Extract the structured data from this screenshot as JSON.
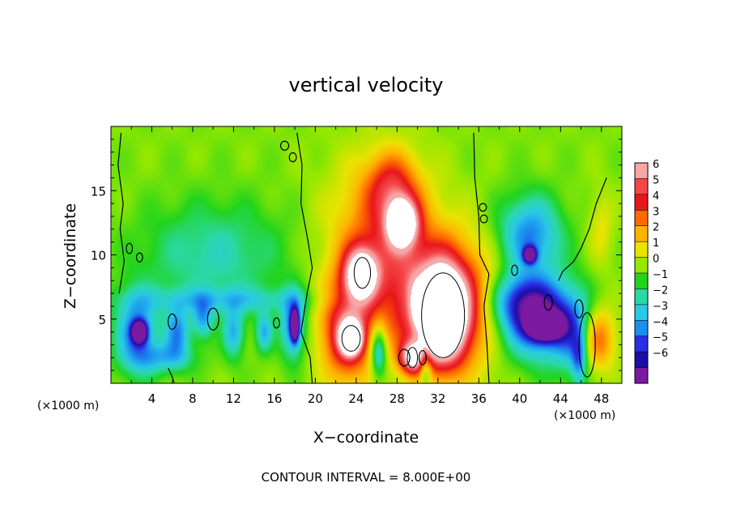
{
  "chart_data": {
    "type": "heatmap",
    "title": "vertical velocity",
    "xlabel": "X−coordinate",
    "ylabel": "Z−coordinate",
    "x_unit_left": "(×1000 m)",
    "x_unit_right": "(×1000 m)",
    "footer": "CONTOUR INTERVAL = 8.000E+00",
    "xlim": [
      0,
      50
    ],
    "ylim": [
      0,
      20
    ],
    "x_ticks": [
      4,
      8,
      12,
      16,
      20,
      24,
      28,
      32,
      36,
      40,
      44,
      48
    ],
    "y_ticks": [
      5,
      10,
      15
    ],
    "colorbar": {
      "levels": [
        "6",
        "5",
        "4",
        "3",
        "2",
        "1",
        "0",
        "−1",
        "−2",
        "−3",
        "−4",
        "−5",
        "−6"
      ],
      "colors": [
        "#f7a6a6",
        "#f4474a",
        "#e8161a",
        "#ff6a00",
        "#ffb300",
        "#e9e300",
        "#95e800",
        "#22d41e",
        "#2ad8a7",
        "#29c9e6",
        "#1b8ff0",
        "#2a2fe6",
        "#1a0fa8",
        "#7a1aa0"
      ]
    },
    "blobs": [
      {
        "x": 26.5,
        "z": 11,
        "rx": 5,
        "rz": 6,
        "v": 3.5
      },
      {
        "x": 27.5,
        "z": 15.5,
        "rx": 2.5,
        "rz": 2.5,
        "v": 3
      },
      {
        "x": 28.5,
        "z": 12.5,
        "rx": 1.5,
        "rz": 1.8,
        "v": 8
      },
      {
        "x": 32.5,
        "z": 6,
        "rx": 5,
        "rz": 5,
        "v": 6
      },
      {
        "x": 32.5,
        "z": 5.3,
        "rx": 2.1,
        "rz": 3.3,
        "v": 10
      },
      {
        "x": 23,
        "z": 4,
        "rx": 2.5,
        "rz": 4,
        "v": 5
      },
      {
        "x": 23.5,
        "z": 3.5,
        "rx": 1,
        "rz": 1.2,
        "v": 9
      },
      {
        "x": 24.5,
        "z": 8.5,
        "rx": 1.6,
        "rz": 2,
        "v": 7
      },
      {
        "x": 29.5,
        "z": 2,
        "rx": 1.2,
        "rz": 1.2,
        "v": 6
      },
      {
        "x": 47.5,
        "z": 3.5,
        "rx": 1.8,
        "rz": 2.5,
        "v": 4
      },
      {
        "x": 26.2,
        "z": 2.5,
        "rx": 0.8,
        "rz": 2,
        "v": -4
      },
      {
        "x": 29.8,
        "z": 6,
        "rx": 0.6,
        "rz": 1.8,
        "v": 1
      },
      {
        "x": 30.8,
        "z": 1.2,
        "rx": 0.6,
        "rz": 1.4,
        "v": -3
      },
      {
        "x": 42,
        "z": 5,
        "rx": 4,
        "rz": 3,
        "v": -6
      },
      {
        "x": 42.5,
        "z": 4.5,
        "rx": 1.5,
        "rz": 1,
        "v": -9
      },
      {
        "x": 41,
        "z": 11.5,
        "rx": 3,
        "rz": 3,
        "v": -4
      },
      {
        "x": 41,
        "z": 10,
        "rx": 0.6,
        "rz": 0.6,
        "v": -7
      },
      {
        "x": 2.5,
        "z": 4,
        "rx": 2,
        "rz": 3,
        "v": -4
      },
      {
        "x": 2.8,
        "z": 4,
        "rx": 0.7,
        "rz": 0.8,
        "v": -8
      },
      {
        "x": 17.8,
        "z": 4.5,
        "rx": 1.2,
        "rz": 2.5,
        "v": -4
      },
      {
        "x": 18,
        "z": 4.5,
        "rx": 0.4,
        "rz": 1.2,
        "v": -8
      },
      {
        "x": 10,
        "z": 10,
        "rx": 7,
        "rz": 4,
        "v": -2
      },
      {
        "x": 6.5,
        "z": 4,
        "rx": 1.2,
        "rz": 2,
        "v": -3.5
      },
      {
        "x": 9,
        "z": 5,
        "rx": 1,
        "rz": 1.5,
        "v": -3
      },
      {
        "x": 12,
        "z": 4,
        "rx": 1,
        "rz": 2,
        "v": -3
      },
      {
        "x": 15,
        "z": 4,
        "rx": 0.8,
        "rz": 1.5,
        "v": -3
      },
      {
        "x": 5,
        "z": 2,
        "rx": 3,
        "rz": 1.2,
        "v": -2.5
      },
      {
        "x": 45.8,
        "z": 2,
        "rx": 0.7,
        "rz": 2,
        "v": -3
      },
      {
        "x": 40,
        "z": 6.5,
        "rx": 3,
        "rz": 2,
        "v": -3
      },
      {
        "x": 45.5,
        "z": 3.5,
        "rx": 1.8,
        "rz": 3,
        "v": -2.5
      },
      {
        "x": 11,
        "z": 6.5,
        "rx": 9,
        "rz": 1,
        "v": -2
      },
      {
        "x": 48,
        "z": 12,
        "rx": 1.2,
        "rz": 3,
        "v": 1.2
      }
    ],
    "zero_contours": [
      [
        [
          1,
          19.5
        ],
        [
          0.7,
          17
        ],
        [
          1.2,
          14
        ],
        [
          0.9,
          12
        ],
        [
          1.3,
          9.5
        ],
        [
          0.8,
          7
        ]
      ],
      [
        [
          18.2,
          19.5
        ],
        [
          18.7,
          17
        ],
        [
          18.6,
          14
        ],
        [
          19.3,
          11
        ],
        [
          19.7,
          9
        ],
        [
          19.2,
          7
        ],
        [
          18.6,
          4
        ],
        [
          19.5,
          2
        ],
        [
          19.7,
          0
        ]
      ],
      [
        [
          35.5,
          19.5
        ],
        [
          35.6,
          16
        ],
        [
          36,
          13
        ],
        [
          36.1,
          10
        ],
        [
          37,
          8.5
        ],
        [
          36.5,
          6
        ],
        [
          36.8,
          3
        ],
        [
          37,
          0
        ]
      ],
      [
        [
          48.5,
          16
        ],
        [
          47.5,
          14
        ],
        [
          46.8,
          12
        ],
        [
          46,
          10.5
        ],
        [
          45.3,
          9.5
        ],
        [
          44.2,
          8.7
        ],
        [
          43.8,
          8
        ]
      ],
      [
        [
          5.6,
          1.2
        ],
        [
          6,
          0.5
        ],
        [
          6.2,
          0
        ]
      ]
    ],
    "small_contours": [
      {
        "x": 17,
        "z": 18.5,
        "rx": 0.4,
        "rz": 0.35
      },
      {
        "x": 17.8,
        "z": 17.6,
        "rx": 0.35,
        "rz": 0.35
      },
      {
        "x": 36.4,
        "z": 13.7,
        "rx": 0.35,
        "rz": 0.3
      },
      {
        "x": 36.5,
        "z": 12.8,
        "rx": 0.35,
        "rz": 0.3
      },
      {
        "x": 1.8,
        "z": 10.5,
        "rx": 0.3,
        "rz": 0.4
      },
      {
        "x": 2.8,
        "z": 9.8,
        "rx": 0.3,
        "rz": 0.35
      },
      {
        "x": 10,
        "z": 5,
        "rx": 0.55,
        "rz": 0.85
      },
      {
        "x": 6,
        "z": 4.8,
        "rx": 0.4,
        "rz": 0.6
      },
      {
        "x": 16.2,
        "z": 4.7,
        "rx": 0.3,
        "rz": 0.4
      },
      {
        "x": 42.8,
        "z": 6.3,
        "rx": 0.4,
        "rz": 0.6
      },
      {
        "x": 45.8,
        "z": 5.8,
        "rx": 0.4,
        "rz": 0.7
      },
      {
        "x": 46.6,
        "z": 3,
        "rx": 0.8,
        "rz": 2.5
      },
      {
        "x": 28.7,
        "z": 2,
        "rx": 0.55,
        "rz": 0.65
      },
      {
        "x": 30.5,
        "z": 2,
        "rx": 0.35,
        "rz": 0.55
      },
      {
        "x": 39.5,
        "z": 8.8,
        "rx": 0.3,
        "rz": 0.4
      }
    ],
    "high_contours": [
      {
        "x": 32.5,
        "z": 5.3,
        "rx": 2.1,
        "rz": 3.3
      },
      {
        "x": 24.6,
        "z": 8.6,
        "rx": 0.8,
        "rz": 1.2
      },
      {
        "x": 23.5,
        "z": 3.5,
        "rx": 0.9,
        "rz": 1
      },
      {
        "x": 29.5,
        "z": 2,
        "rx": 0.5,
        "rz": 0.8
      }
    ]
  }
}
